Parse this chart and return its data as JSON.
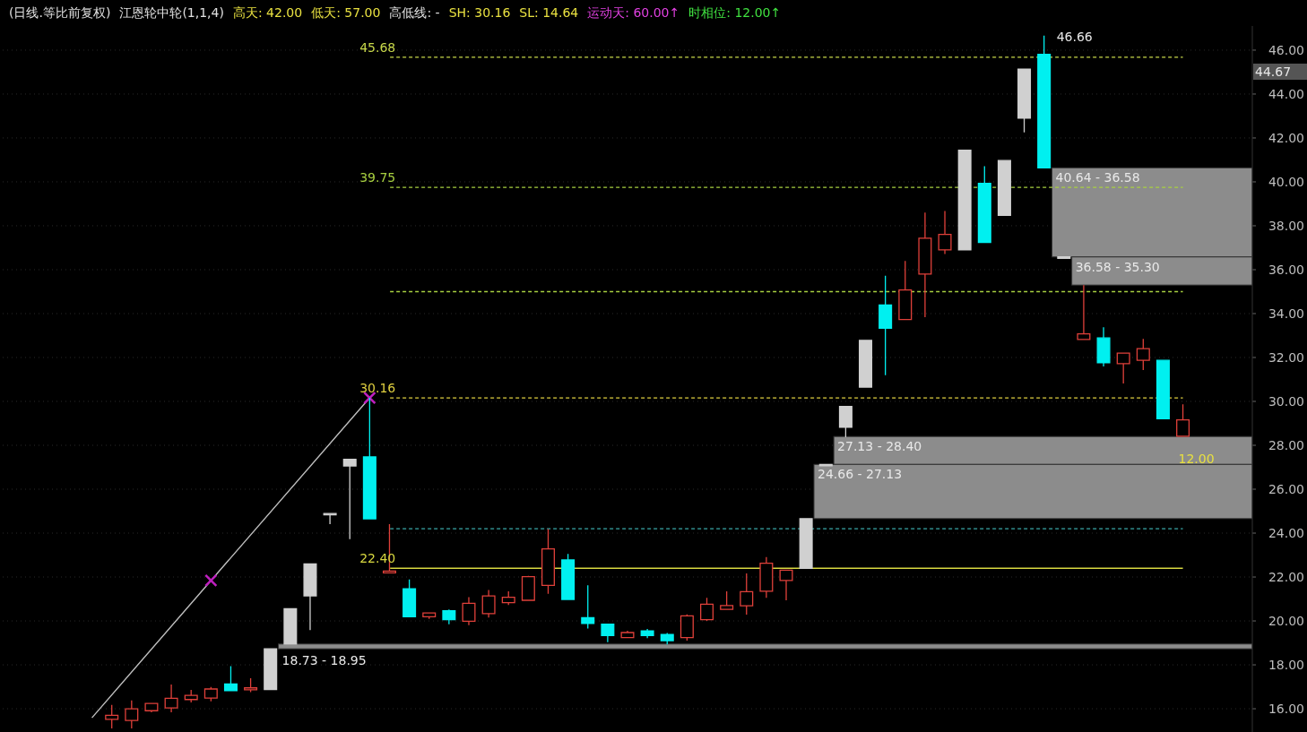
{
  "chart_data": {
    "type": "candlestick",
    "title": "(日线.等比前复权)",
    "subtitle": "江恩轮中轮(1,1,4)",
    "categories": [
      null,
      null,
      null,
      null,
      null,
      null,
      null,
      null,
      null,
      null,
      null,
      null,
      null,
      null,
      null,
      null,
      null,
      null,
      null,
      null,
      null,
      null,
      null,
      null,
      null,
      null,
      null,
      null,
      null,
      null,
      null,
      null,
      null,
      null,
      null,
      null,
      null,
      null,
      null,
      null,
      null,
      null,
      null,
      null,
      null,
      null,
      null,
      null,
      null,
      null,
      null,
      null,
      null,
      null,
      null,
      null,
      null,
      null,
      null,
      null,
      null,
      null,
      null
    ],
    "ohlc": [
      null,
      null,
      null,
      null,
      null,
      [
        15.52,
        16.18,
        15.1,
        15.7
      ],
      [
        15.47,
        16.38,
        15.1,
        16.0
      ],
      [
        15.91,
        16.27,
        15.84,
        16.24
      ],
      [
        16.04,
        17.1,
        15.84,
        16.48
      ],
      [
        16.42,
        16.86,
        16.29,
        16.61
      ],
      [
        16.49,
        16.99,
        16.34,
        16.9
      ],
      [
        17.13,
        17.94,
        16.82,
        16.82
      ],
      [
        16.86,
        17.39,
        16.76,
        16.95
      ],
      [
        16.88,
        18.73,
        16.88,
        18.73
      ],
      [
        18.95,
        20.56,
        18.95,
        20.56
      ],
      [
        21.14,
        22.6,
        19.58,
        22.6
      ],
      [
        24.89,
        24.89,
        24.41,
        24.89
      ],
      [
        27.06,
        27.36,
        23.73,
        27.36
      ],
      [
        27.47,
        30.16,
        24.65,
        24.65
      ],
      [
        22.19,
        24.41,
        22.19,
        22.27
      ],
      [
        21.46,
        21.89,
        20.19,
        20.19
      ],
      [
        20.19,
        20.36,
        20.09,
        20.36
      ],
      [
        20.46,
        20.52,
        19.85,
        20.06
      ],
      [
        19.99,
        21.08,
        19.81,
        20.8
      ],
      [
        20.33,
        21.41,
        20.15,
        21.14
      ],
      [
        20.83,
        21.35,
        20.73,
        21.08
      ],
      [
        20.94,
        22.05,
        20.94,
        22.02
      ],
      [
        21.62,
        24.18,
        21.24,
        23.28
      ],
      [
        22.78,
        23.05,
        20.98,
        20.98
      ],
      [
        20.15,
        21.62,
        19.65,
        19.88
      ],
      [
        19.85,
        19.85,
        19.03,
        19.33
      ],
      [
        19.24,
        19.55,
        19.24,
        19.47
      ],
      [
        19.55,
        19.63,
        19.22,
        19.33
      ],
      [
        19.38,
        19.45,
        18.93,
        19.1
      ],
      [
        19.24,
        20.3,
        19.1,
        20.23
      ],
      [
        20.06,
        21.05,
        20.0,
        20.76
      ],
      [
        20.53,
        21.35,
        20.53,
        20.7
      ],
      [
        20.69,
        22.16,
        20.29,
        21.33
      ],
      [
        21.35,
        22.91,
        21.05,
        22.63
      ],
      [
        21.84,
        22.31,
        20.94,
        22.31
      ],
      [
        22.4,
        24.66,
        22.4,
        24.66
      ],
      [
        27.13,
        27.13,
        27.13,
        27.13
      ],
      [
        28.82,
        29.77,
        28.37,
        29.77
      ],
      [
        30.65,
        32.78,
        30.65,
        32.78
      ],
      [
        34.39,
        35.72,
        31.19,
        33.33
      ],
      [
        33.73,
        36.4,
        33.73,
        35.08
      ],
      [
        35.8,
        38.6,
        33.84,
        37.43
      ],
      [
        36.9,
        38.67,
        36.71,
        37.61
      ],
      [
        36.9,
        41.44,
        36.9,
        41.44
      ],
      [
        39.93,
        40.71,
        37.24,
        37.24
      ],
      [
        38.47,
        40.97,
        38.47,
        40.97
      ],
      [
        42.9,
        45.13,
        42.25,
        45.13
      ],
      [
        45.81,
        46.66,
        40.64,
        40.64
      ],
      [
        36.58,
        36.58,
        36.58,
        36.58
      ],
      [
        32.82,
        35.3,
        32.82,
        33.08
      ],
      [
        32.89,
        33.38,
        31.59,
        31.76
      ],
      [
        31.72,
        32.2,
        30.82,
        32.2
      ],
      [
        31.87,
        32.85,
        31.43,
        32.4
      ],
      [
        31.87,
        31.87,
        29.21,
        29.21
      ],
      [
        28.41,
        29.87,
        28.41,
        29.16
      ],
      null,
      null,
      null
    ],
    "colors": [
      null,
      null,
      null,
      null,
      null,
      "#e0403a",
      "#e0403a",
      "#e0403a",
      "#e0403a",
      "#e0403a",
      "#e0403a",
      "#00f0f0",
      "#e0403a",
      "#d0d0d0",
      "#d0d0d0",
      "#d0d0d0",
      "#d0d0d0",
      "#d0d0d0",
      "#00f0f0",
      "#e0403a",
      "#00f0f0",
      "#e0403a",
      "#00f0f0",
      "#e0403a",
      "#e0403a",
      "#e0403a",
      "#e0403a",
      "#e0403a",
      "#00f0f0",
      "#00f0f0",
      "#00f0f0",
      "#e0403a",
      "#00f0f0",
      "#00f0f0",
      "#e0403a",
      "#e0403a",
      "#e0403a",
      "#e0403a",
      "#e0403a",
      "#e0403a",
      "#d0d0d0",
      "#d0d0d0",
      "#d0d0d0",
      "#d0d0d0",
      "#00f0f0",
      "#e0403a",
      "#e0403a",
      "#e0403a",
      "#d0d0d0",
      "#00f0f0",
      "#d0d0d0",
      "#d0d0d0",
      "#00f0f0",
      "#d0d0d0",
      "#e0403a",
      "#00f0f0",
      "#e0403a",
      "#e0403a",
      "#00f0f0",
      "#e0403a",
      null,
      null,
      null
    ],
    "series": [
      {
        "type": "line",
        "color": "#bfbfbf",
        "values": [
          null,
          null,
          null,
          null,
          15.59,
          null,
          null,
          null,
          null,
          null,
          21.84,
          null,
          null,
          null,
          null,
          null,
          null,
          null,
          30.16,
          null,
          null,
          null,
          null,
          null,
          null,
          null,
          null,
          null,
          null,
          null,
          null,
          null,
          null,
          null,
          null,
          null,
          null,
          null,
          null,
          null,
          null,
          null,
          null,
          null,
          null,
          null,
          null,
          null,
          null,
          null,
          null,
          null,
          null,
          null,
          null,
          null,
          null,
          null,
          null,
          null,
          null,
          null,
          null
        ]
      },
      {
        "type": "scatter",
        "color": "#c020c0",
        "marker": "cross",
        "values": [
          null,
          null,
          null,
          null,
          null,
          null,
          null,
          null,
          null,
          null,
          21.84,
          null,
          null,
          null,
          null,
          null,
          null,
          null,
          30.16,
          null,
          null,
          null,
          null,
          null,
          null,
          null,
          null,
          null,
          null,
          null,
          null,
          null,
          null,
          null,
          null,
          null,
          null,
          null,
          null,
          null,
          null,
          null,
          null,
          null,
          null,
          null,
          null,
          null,
          null,
          null,
          null,
          null,
          null,
          null,
          null,
          null,
          null,
          null,
          null,
          null,
          null,
          null,
          null
        ]
      }
    ],
    "ylim": [
      14.9,
      47.1
    ],
    "yticks": [
      {
        "value": 16,
        "label": "16.00"
      },
      {
        "value": 18,
        "label": "18.00"
      },
      {
        "value": 20,
        "label": "20.00"
      },
      {
        "value": 22,
        "label": "22.00"
      },
      {
        "value": 24,
        "label": "24.00"
      },
      {
        "value": 26,
        "label": "26.00"
      },
      {
        "value": 28,
        "label": "28.00"
      },
      {
        "value": 30,
        "label": "30.00"
      },
      {
        "value": 32,
        "label": "32.00"
      },
      {
        "value": 34,
        "label": "34.00"
      },
      {
        "value": 36,
        "label": "36.00"
      },
      {
        "value": 38,
        "label": "38.00"
      },
      {
        "value": 40,
        "label": "40.00"
      },
      {
        "value": 42,
        "label": "42.00"
      },
      {
        "value": 44,
        "label": "44.00"
      },
      {
        "value": 46,
        "label": "46.00"
      }
    ],
    "tick_labels": "y",
    "grid": "y",
    "bands": [
      {
        "axis": "y",
        "from": 36.58,
        "to": 40.64,
        "label": "40.64 - 36.58",
        "color": "#8c8c8c"
      },
      {
        "axis": "y",
        "from": 35.3,
        "to": 36.58,
        "label": "36.58 - 35.30",
        "color": "#8c8c8c"
      },
      {
        "axis": "y",
        "from": 27.13,
        "to": 28.4,
        "label": "27.13 - 28.40",
        "color": "#8c8c8c"
      },
      {
        "axis": "y",
        "from": 24.66,
        "to": 27.13,
        "label": "24.66 - 27.13",
        "color": "#8c8c8c"
      },
      {
        "axis": "y",
        "from": 18.73,
        "to": 18.95,
        "label": "18.73 - 18.95",
        "color": "#8c8c8c"
      }
    ],
    "ref_lines": [
      {
        "axis": "y",
        "value": 45.68,
        "label": "45.68",
        "color": "#c8d84a",
        "line_style": "dashed"
      },
      {
        "axis": "y",
        "value": 39.75,
        "label": "39.75",
        "color": "#a8d040",
        "line_style": "dashed"
      },
      {
        "axis": "y",
        "value": 35.0,
        "label": null,
        "color": "#a8d040",
        "line_style": "dashed"
      },
      {
        "axis": "y",
        "value": 30.16,
        "label": "30.16",
        "color": "#e0d040",
        "line_style": "dashed"
      },
      {
        "axis": "y",
        "value": 24.2,
        "label": null,
        "color": "#3aa8a8",
        "line_style": "dashed"
      },
      {
        "axis": "y",
        "value": 22.4,
        "label": "22.40",
        "color": "#d8d840",
        "line_style": "solid"
      }
    ],
    "annotations": [
      "高天: 42.00",
      "低天: 57.00",
      "高低线: -",
      "SH: 30.16",
      "SL: 14.64",
      "运动天: 60.00↑",
      "时相位: 12.00↑",
      "46.66",
      "12.00",
      "44.67"
    ]
  }
}
